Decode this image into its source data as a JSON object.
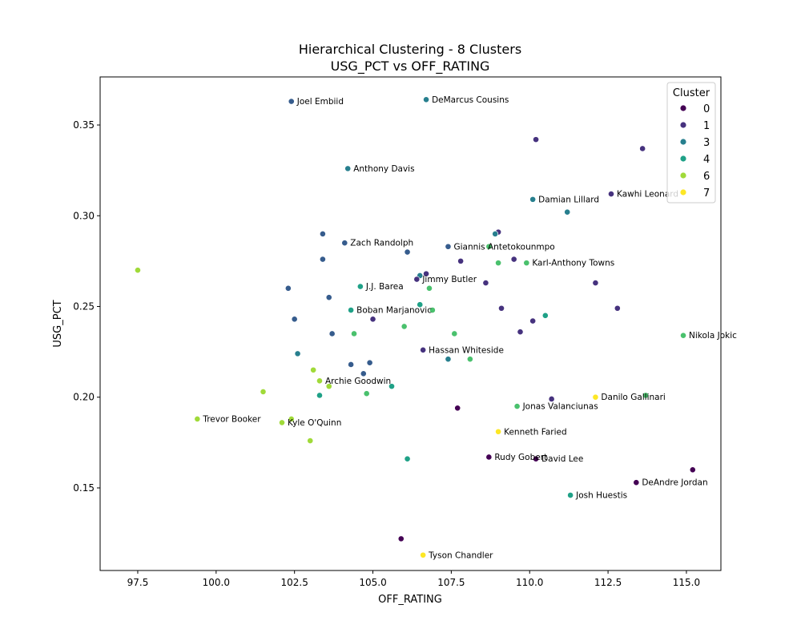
{
  "chart_data": {
    "type": "scatter",
    "title": "Hierarchical Clustering - 8 Clusters",
    "subtitle": "USG_PCT vs OFF_RATING",
    "xlabel": "OFF_RATING",
    "ylabel": "USG_PCT",
    "xlim": [
      96.3,
      116.1
    ],
    "ylim": [
      0.1045,
      0.3765
    ],
    "xticks": [
      "97.5",
      "100.0",
      "102.5",
      "105.0",
      "107.5",
      "110.0",
      "112.5",
      "115.0"
    ],
    "yticks": [
      "0.15",
      "0.20",
      "0.25",
      "0.30",
      "0.35"
    ],
    "grid": false,
    "legend": {
      "title": "Cluster",
      "position": "upper right",
      "entries": [
        "0",
        "1",
        "3",
        "4",
        "6",
        "7"
      ]
    },
    "cluster_colors": {
      "0": "#440154",
      "1": "#46327e",
      "2": "#365c8d",
      "3": "#277f8e",
      "4": "#1fa187",
      "5": "#4ac16d",
      "6": "#a0da39",
      "7": "#fde725"
    },
    "points": [
      {
        "x": 102.4,
        "y": 0.363,
        "cluster": 2,
        "label": "Joel Embiid"
      },
      {
        "x": 106.7,
        "y": 0.364,
        "cluster": 3,
        "label": "DeMarcus Cousins"
      },
      {
        "x": 110.2,
        "y": 0.342,
        "cluster": 1
      },
      {
        "x": 113.6,
        "y": 0.337,
        "cluster": 1
      },
      {
        "x": 104.2,
        "y": 0.326,
        "cluster": 3,
        "label": "Anthony Davis"
      },
      {
        "x": 112.6,
        "y": 0.312,
        "cluster": 1,
        "label": "Kawhi Leonard"
      },
      {
        "x": 110.1,
        "y": 0.309,
        "cluster": 3,
        "label": "Damian Lillard"
      },
      {
        "x": 111.2,
        "y": 0.302,
        "cluster": 3
      },
      {
        "x": 103.4,
        "y": 0.29,
        "cluster": 2
      },
      {
        "x": 109.0,
        "y": 0.291,
        "cluster": 1
      },
      {
        "x": 108.9,
        "y": 0.29,
        "cluster": 3
      },
      {
        "x": 104.1,
        "y": 0.285,
        "cluster": 2,
        "label": "Zach Randolph"
      },
      {
        "x": 107.4,
        "y": 0.283,
        "cluster": 2,
        "label": "Giannis Antetokounmpo"
      },
      {
        "x": 108.7,
        "y": 0.283,
        "cluster": 5
      },
      {
        "x": 106.1,
        "y": 0.28,
        "cluster": 2
      },
      {
        "x": 103.4,
        "y": 0.276,
        "cluster": 2
      },
      {
        "x": 109.5,
        "y": 0.276,
        "cluster": 1
      },
      {
        "x": 107.8,
        "y": 0.275,
        "cluster": 1
      },
      {
        "x": 109.0,
        "y": 0.274,
        "cluster": 5
      },
      {
        "x": 109.9,
        "y": 0.274,
        "cluster": 5,
        "label": "Karl-Anthony Towns"
      },
      {
        "x": 97.5,
        "y": 0.27,
        "cluster": 6
      },
      {
        "x": 106.7,
        "y": 0.268,
        "cluster": 1
      },
      {
        "x": 106.5,
        "y": 0.267,
        "cluster": 3
      },
      {
        "x": 106.4,
        "y": 0.265,
        "cluster": 1,
        "label": "Jimmy Butler"
      },
      {
        "x": 108.6,
        "y": 0.263,
        "cluster": 1
      },
      {
        "x": 112.1,
        "y": 0.263,
        "cluster": 1
      },
      {
        "x": 104.6,
        "y": 0.261,
        "cluster": 4,
        "label": "J.J. Barea"
      },
      {
        "x": 102.3,
        "y": 0.26,
        "cluster": 2
      },
      {
        "x": 106.8,
        "y": 0.26,
        "cluster": 5
      },
      {
        "x": 103.6,
        "y": 0.255,
        "cluster": 2
      },
      {
        "x": 106.5,
        "y": 0.251,
        "cluster": 4
      },
      {
        "x": 104.3,
        "y": 0.248,
        "cluster": 4,
        "label": "Boban Marjanovic"
      },
      {
        "x": 106.9,
        "y": 0.248,
        "cluster": 5
      },
      {
        "x": 109.1,
        "y": 0.249,
        "cluster": 1
      },
      {
        "x": 112.8,
        "y": 0.249,
        "cluster": 1
      },
      {
        "x": 110.5,
        "y": 0.245,
        "cluster": 4
      },
      {
        "x": 102.5,
        "y": 0.243,
        "cluster": 2
      },
      {
        "x": 105.0,
        "y": 0.243,
        "cluster": 1
      },
      {
        "x": 110.1,
        "y": 0.242,
        "cluster": 1
      },
      {
        "x": 106.0,
        "y": 0.239,
        "cluster": 5
      },
      {
        "x": 103.7,
        "y": 0.235,
        "cluster": 2
      },
      {
        "x": 104.4,
        "y": 0.235,
        "cluster": 5
      },
      {
        "x": 107.6,
        "y": 0.235,
        "cluster": 5
      },
      {
        "x": 109.7,
        "y": 0.236,
        "cluster": 1
      },
      {
        "x": 114.9,
        "y": 0.234,
        "cluster": 5,
        "label": "Nikola Jokic"
      },
      {
        "x": 106.6,
        "y": 0.226,
        "cluster": 1,
        "label": "Hassan Whiteside"
      },
      {
        "x": 102.6,
        "y": 0.224,
        "cluster": 3
      },
      {
        "x": 107.4,
        "y": 0.221,
        "cluster": 3
      },
      {
        "x": 108.1,
        "y": 0.221,
        "cluster": 5
      },
      {
        "x": 104.3,
        "y": 0.218,
        "cluster": 2
      },
      {
        "x": 104.9,
        "y": 0.219,
        "cluster": 2
      },
      {
        "x": 103.1,
        "y": 0.215,
        "cluster": 6
      },
      {
        "x": 104.7,
        "y": 0.213,
        "cluster": 2
      },
      {
        "x": 103.3,
        "y": 0.209,
        "cluster": 6,
        "label": "Archie Goodwin"
      },
      {
        "x": 103.6,
        "y": 0.206,
        "cluster": 6
      },
      {
        "x": 105.6,
        "y": 0.206,
        "cluster": 4
      },
      {
        "x": 101.5,
        "y": 0.203,
        "cluster": 6
      },
      {
        "x": 103.3,
        "y": 0.201,
        "cluster": 4
      },
      {
        "x": 104.8,
        "y": 0.202,
        "cluster": 5
      },
      {
        "x": 112.1,
        "y": 0.2,
        "cluster": 7,
        "label": "Danilo Gallinari"
      },
      {
        "x": 113.7,
        "y": 0.201,
        "cluster": 5
      },
      {
        "x": 110.7,
        "y": 0.199,
        "cluster": 1
      },
      {
        "x": 109.6,
        "y": 0.195,
        "cluster": 5,
        "label": "Jonas Valanciunas"
      },
      {
        "x": 107.7,
        "y": 0.194,
        "cluster": 0
      },
      {
        "x": 99.4,
        "y": 0.188,
        "cluster": 6,
        "label": "Trevor Booker"
      },
      {
        "x": 102.1,
        "y": 0.186,
        "cluster": 6,
        "label": "Kyle O'Quinn"
      },
      {
        "x": 102.4,
        "y": 0.188,
        "cluster": 6
      },
      {
        "x": 109.0,
        "y": 0.181,
        "cluster": 7,
        "label": "Kenneth Faried"
      },
      {
        "x": 103.0,
        "y": 0.176,
        "cluster": 6
      },
      {
        "x": 108.7,
        "y": 0.167,
        "cluster": 0,
        "label": "Rudy Gobert"
      },
      {
        "x": 110.2,
        "y": 0.166,
        "cluster": 0,
        "label": "David Lee"
      },
      {
        "x": 106.1,
        "y": 0.166,
        "cluster": 4
      },
      {
        "x": 115.2,
        "y": 0.16,
        "cluster": 0
      },
      {
        "x": 113.4,
        "y": 0.153,
        "cluster": 0,
        "label": "DeAndre Jordan"
      },
      {
        "x": 111.3,
        "y": 0.146,
        "cluster": 4,
        "label": "Josh Huestis"
      },
      {
        "x": 105.9,
        "y": 0.122,
        "cluster": 0
      },
      {
        "x": 106.6,
        "y": 0.113,
        "cluster": 7,
        "label": "Tyson Chandler"
      }
    ]
  }
}
